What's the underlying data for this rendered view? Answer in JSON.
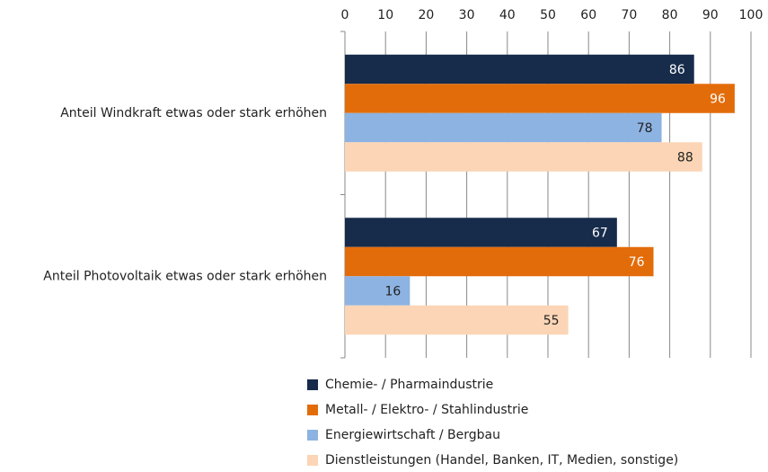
{
  "chart_data": {
    "type": "bar",
    "orientation": "horizontal",
    "categories": [
      "Anteil Windkraft etwas oder stark erhöhen",
      "Anteil Photovoltaik etwas oder stark erhöhen"
    ],
    "series": [
      {
        "name": "Chemie- / Pharmaindustrie",
        "color": "#172b4b",
        "values": [
          86,
          67
        ]
      },
      {
        "name": "Metall- / Elektro- / Stahlindustrie",
        "color": "#e36c0a",
        "values": [
          96,
          76
        ]
      },
      {
        "name": "Energiewirtschaft / Bergbau",
        "color": "#8db3e2",
        "values": [
          78,
          16
        ]
      },
      {
        "name": "Dienstleistungen (Handel, Banken, IT, Medien, sonstige)",
        "color": "#fbd5b5",
        "values": [
          88,
          55
        ]
      }
    ],
    "xlim": [
      0,
      100
    ],
    "xticks": [
      0,
      10,
      20,
      30,
      40,
      50,
      60,
      70,
      80,
      90,
      100
    ],
    "grid": true
  }
}
